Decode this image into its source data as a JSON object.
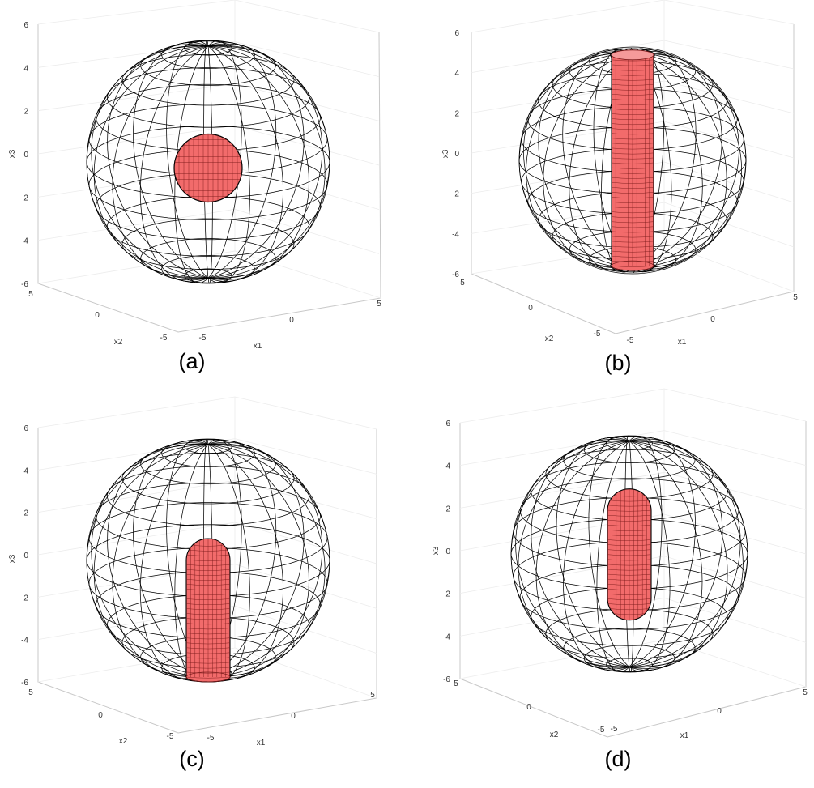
{
  "panels": [
    {
      "id": "a",
      "caption": "(a)",
      "inner_shape": "sphere",
      "axis_labels": {
        "x1": "x1",
        "x2": "x2",
        "x3": "x3"
      },
      "x3_ticks": [
        "6",
        "4",
        "2",
        "0",
        "-2",
        "-4",
        "-6"
      ],
      "x1_ticks": [
        "-5",
        "0",
        "5"
      ],
      "x2_ticks": [
        "5",
        "0",
        "-5"
      ]
    },
    {
      "id": "b",
      "caption": "(b)",
      "inner_shape": "cylinder",
      "axis_labels": {
        "x1": "x1",
        "x2": "x2",
        "x3": "x3"
      },
      "x3_ticks": [
        "6",
        "4",
        "2",
        "0",
        "-2",
        "-4",
        "-6"
      ],
      "x1_ticks": [
        "-5",
        "0",
        "5"
      ],
      "x2_ticks": [
        "5",
        "0",
        "-5"
      ]
    },
    {
      "id": "c",
      "caption": "(c)",
      "inner_shape": "capsule-half",
      "axis_labels": {
        "x1": "x1",
        "x2": "x2",
        "x3": "x3"
      },
      "x3_ticks": [
        "6",
        "4",
        "2",
        "0",
        "-2",
        "-4",
        "-6"
      ],
      "x1_ticks": [
        "-5",
        "0",
        "5"
      ],
      "x2_ticks": [
        "5",
        "0",
        "-5"
      ]
    },
    {
      "id": "d",
      "caption": "(d)",
      "inner_shape": "capsule",
      "axis_labels": {
        "x1": "x1",
        "x2": "x2",
        "x3": "x3"
      },
      "x3_ticks": [
        "6",
        "4",
        "2",
        "0",
        "-2",
        "-4",
        "-6"
      ],
      "x1_ticks": [
        "-5",
        "0",
        "5"
      ],
      "x2_ticks": [
        "5",
        "0",
        "-5"
      ]
    }
  ],
  "colors": {
    "outer_mesh": "#000000",
    "inner_fill": "#f26b6b",
    "inner_mesh": "#7a1a1a",
    "axis_box": "#c8c8c8"
  }
}
